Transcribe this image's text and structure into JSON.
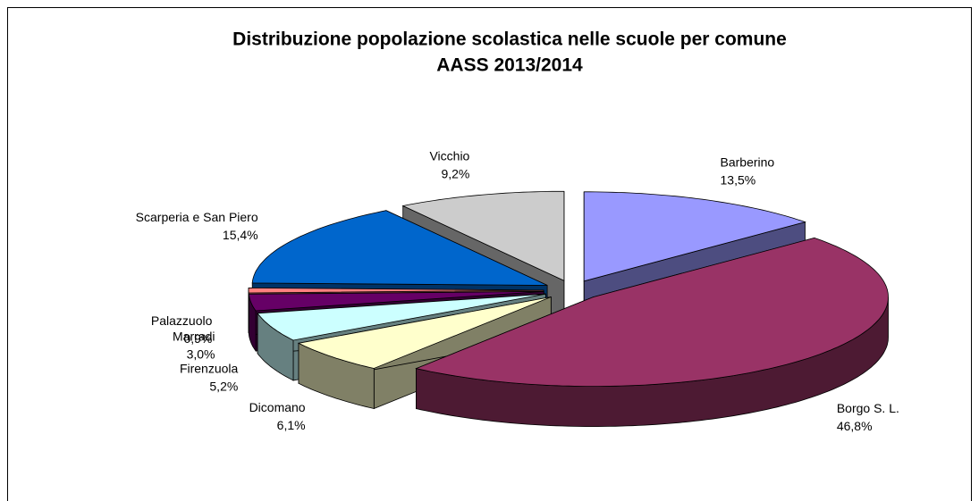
{
  "chart_data": {
    "type": "pie3d",
    "title": "Distribuzione popolazione scolastica nelle scuole per comune",
    "subtitle": "AASS 2013/2014",
    "categories": [
      "Barberino",
      "Borgo S. L.",
      "Dicomano",
      "Firenzuola",
      "Marradi",
      "Palazzuolo",
      "Scarperia e San Piero",
      "Vicchio"
    ],
    "values": [
      13.5,
      46.8,
      6.1,
      5.2,
      3.0,
      0.9,
      15.4,
      9.2
    ],
    "value_labels": [
      "13,5%",
      "46,8%",
      "6,1%",
      "5,2%",
      "3,0%",
      "0,9%",
      "15,4%",
      "9,2%"
    ],
    "colors": [
      "#9999ff",
      "#993366",
      "#ffffcc",
      "#ccffff",
      "#660066",
      "#ff8080",
      "#0066cc",
      "#cccccc"
    ]
  }
}
